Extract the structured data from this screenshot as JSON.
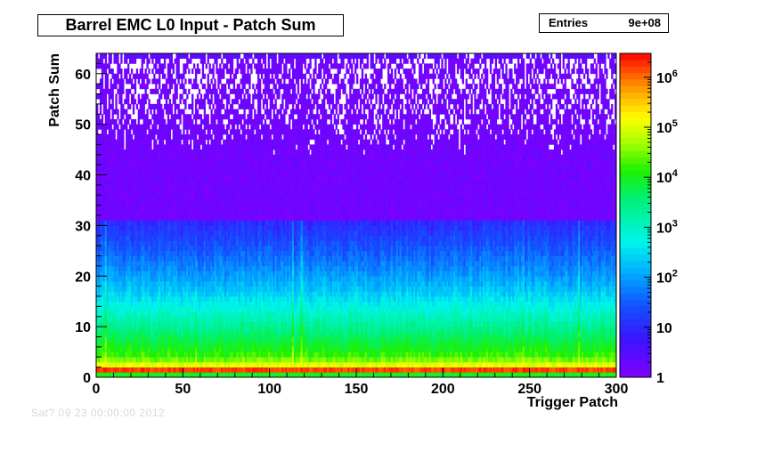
{
  "title": "Barrel EMC L0 Input - Patch Sum",
  "stats": {
    "label": "Entries",
    "value": "9e+08"
  },
  "footer": "Sat? 09 23 00:00:00 2012",
  "chart_data": {
    "type": "heatmap",
    "title": "Barrel EMC L0 Input - Patch Sum",
    "xlabel": "Trigger Patch",
    "ylabel": "Patch Sum",
    "xlim": [
      0,
      300
    ],
    "ylim": [
      0,
      64
    ],
    "x_ticks": [
      "0",
      "50",
      "100",
      "150",
      "200",
      "250",
      "300"
    ],
    "y_ticks": [
      "0",
      "10",
      "20",
      "30",
      "40",
      "50",
      "60"
    ],
    "z_scale": "log",
    "z_range": [
      1,
      3000000
    ],
    "color_ticks": [
      {
        "base": "1",
        "exp": ""
      },
      {
        "base": "10",
        "exp": ""
      },
      {
        "base": "10",
        "exp": "2"
      },
      {
        "base": "10",
        "exp": "3"
      },
      {
        "base": "10",
        "exp": "4"
      },
      {
        "base": "10",
        "exp": "5"
      },
      {
        "base": "10",
        "exp": "6"
      }
    ],
    "color_tick_values": [
      1,
      10,
      100,
      1000,
      10000,
      100000,
      1000000
    ],
    "bins": {
      "x_bins": 300,
      "y_bins": 64
    },
    "profile_log10_counts_by_patch_sum": [
      [
        0,
        4.0
      ],
      [
        1,
        6.2
      ],
      [
        2,
        5.0
      ],
      [
        3,
        4.5
      ],
      [
        4,
        4.2
      ],
      [
        6,
        3.9
      ],
      [
        8,
        3.6
      ],
      [
        10,
        3.3
      ],
      [
        12,
        3.0
      ],
      [
        14,
        2.7
      ],
      [
        16,
        2.4
      ],
      [
        18,
        2.15
      ],
      [
        20,
        1.95
      ],
      [
        24,
        1.55
      ],
      [
        28,
        1.2
      ],
      [
        32,
        0.9
      ],
      [
        36,
        0.65
      ],
      [
        40,
        0.45
      ],
      [
        45,
        0.25
      ],
      [
        50,
        0.12
      ],
      [
        55,
        0.05
      ],
      [
        62,
        0.0
      ],
      [
        63,
        0.3
      ]
    ],
    "hot_patches": [
      5,
      113,
      118,
      246,
      278
    ],
    "grid": false
  }
}
